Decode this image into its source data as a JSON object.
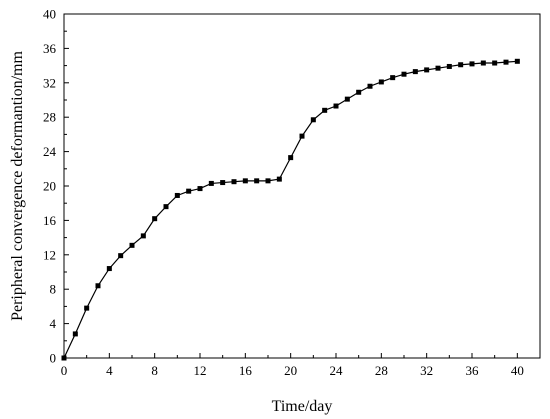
{
  "chart_data": {
    "type": "line",
    "title": "",
    "xlabel": "Time/day",
    "ylabel": "Peripheral convergence deformantion/mm",
    "xlim": [
      0,
      42
    ],
    "ylim": [
      0,
      40
    ],
    "xticks": [
      0,
      4,
      8,
      12,
      16,
      20,
      24,
      28,
      32,
      36,
      40
    ],
    "yticks": [
      0,
      4,
      8,
      12,
      16,
      20,
      24,
      28,
      32,
      36,
      40
    ],
    "grid": false,
    "legend": "none",
    "series": [
      {
        "marker": "square",
        "color": "#000000",
        "x": [
          0,
          1,
          2,
          3,
          4,
          5,
          6,
          7,
          8,
          9,
          10,
          11,
          12,
          13,
          14,
          15,
          16,
          17,
          18,
          19,
          20,
          21,
          22,
          23,
          24,
          25,
          26,
          27,
          28,
          29,
          30,
          31,
          32,
          33,
          34,
          35,
          36,
          37,
          38,
          39,
          40
        ],
        "y": [
          0,
          2.8,
          5.8,
          8.4,
          10.4,
          11.9,
          13.1,
          14.2,
          16.2,
          17.6,
          18.9,
          19.4,
          19.7,
          20.3,
          20.4,
          20.5,
          20.6,
          20.6,
          20.6,
          20.8,
          23.3,
          25.8,
          27.7,
          28.8,
          29.3,
          30.1,
          30.9,
          31.6,
          32.1,
          32.6,
          33.0,
          33.3,
          33.5,
          33.7,
          33.9,
          34.1,
          34.2,
          34.3,
          34.3,
          34.4,
          34.5
        ]
      }
    ]
  }
}
